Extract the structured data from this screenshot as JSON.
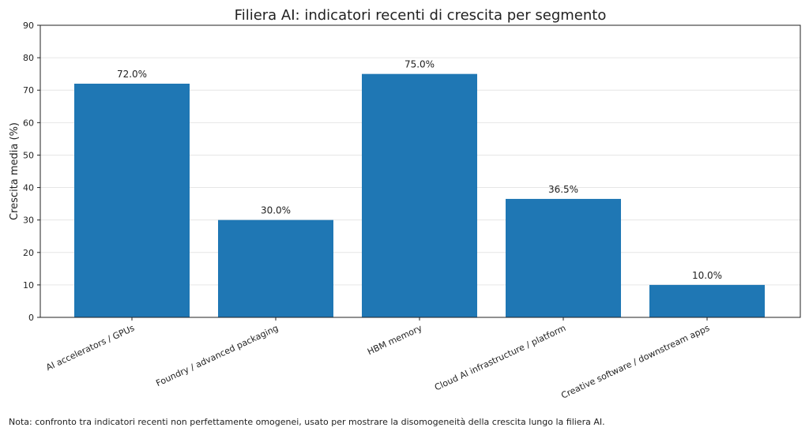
{
  "chart_data": {
    "type": "bar",
    "title": "Filiera AI: indicatori recenti di crescita per segmento",
    "xlabel": "",
    "ylabel": "Crescita media (%)",
    "ylim": [
      0,
      90
    ],
    "yticks": [
      0,
      10,
      20,
      30,
      40,
      50,
      60,
      70,
      80,
      90
    ],
    "grid": "y",
    "categories": [
      "AI accelerators / GPUs",
      "Foundry / advanced packaging",
      "HBM memory",
      "Cloud AI infrastructure / platform",
      "Creative software / downstream apps"
    ],
    "values": [
      72.0,
      30.0,
      75.0,
      36.5,
      10.0
    ],
    "data_labels": [
      "72.0%",
      "30.0%",
      "75.0%",
      "36.5%",
      "10.0%"
    ],
    "bar_color": "#1f77b4"
  },
  "note": "Nota: confronto tra indicatori recenti non perfettamente omogenei, usato per mostrare la disomogeneità della crescita lungo la filiera AI."
}
